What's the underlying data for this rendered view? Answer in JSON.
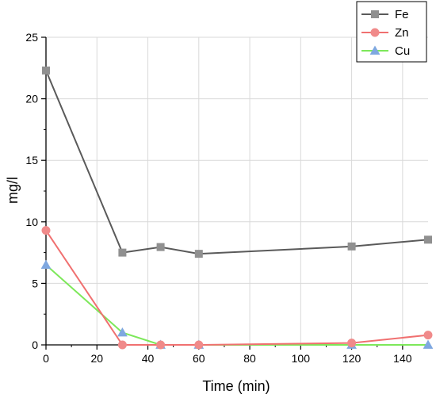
{
  "chart_data": {
    "type": "line",
    "xlabel": "Time (min)",
    "ylabel": "mg/l",
    "xlim": [
      0,
      150
    ],
    "ylim": [
      0,
      25
    ],
    "xticks": [
      0,
      20,
      40,
      60,
      80,
      100,
      120,
      140
    ],
    "yticks": [
      0,
      5,
      10,
      15,
      20,
      25
    ],
    "grid": true,
    "legend_position": "top-right",
    "series": [
      {
        "name": "Fe",
        "color": "#5a5a5a",
        "marker_color": "#909090",
        "marker": "square",
        "x": [
          0,
          30,
          45,
          60,
          120,
          150
        ],
        "y": [
          22.3,
          7.5,
          7.95,
          7.4,
          8.0,
          8.55
        ]
      },
      {
        "name": "Zn",
        "color": "#f07070",
        "marker_color": "#f08a8a",
        "marker": "circle",
        "x": [
          0,
          30,
          45,
          60,
          120,
          150
        ],
        "y": [
          9.3,
          0.0,
          0.0,
          0.0,
          0.15,
          0.8
        ]
      },
      {
        "name": "Cu",
        "color": "#7de85a",
        "marker_color": "#7fa8e0",
        "marker": "triangle",
        "x": [
          0,
          30,
          45,
          60,
          120,
          150
        ],
        "y": [
          6.5,
          1.0,
          0.0,
          0.0,
          0.0,
          0.0
        ]
      }
    ]
  }
}
